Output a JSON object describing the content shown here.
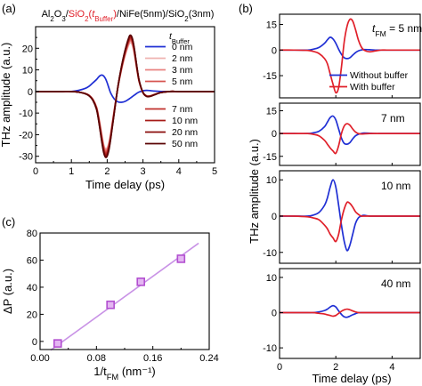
{
  "chart_data": [
    {
      "panel": "(a)",
      "type": "line",
      "title": {
        "segments": [
          {
            "text": "Al",
            "sub": false,
            "color": "#000000"
          },
          {
            "text": "2",
            "sub": true,
            "color": "#000000"
          },
          {
            "text": "O",
            "sub": false,
            "color": "#000000"
          },
          {
            "text": "3",
            "sub": true,
            "color": "#000000"
          },
          {
            "text": "/",
            "sub": false,
            "color": "#000000"
          },
          {
            "text": "SiO",
            "sub": false,
            "color": "#e0202a"
          },
          {
            "text": "2",
            "sub": true,
            "color": "#e0202a"
          },
          {
            "text": "(",
            "sub": false,
            "color": "#e0202a"
          },
          {
            "text": "t",
            "sub": false,
            "italic": true,
            "color": "#e0202a"
          },
          {
            "text": "Buffer",
            "sub": true,
            "color": "#e0202a"
          },
          {
            "text": ")",
            "sub": false,
            "color": "#e0202a"
          },
          {
            "text": "/NiFe(5nm)/SiO",
            "sub": false,
            "color": "#000000"
          },
          {
            "text": "2",
            "sub": true,
            "color": "#000000"
          },
          {
            "text": "(3nm)",
            "sub": false,
            "color": "#000000"
          }
        ]
      },
      "xlabel": "Time delay (ps)",
      "ylabel": "THz amplitude (a.u.)",
      "xlim": [
        0,
        5
      ],
      "ylim": [
        -33,
        30
      ],
      "xticks": [
        "0",
        "1",
        "2",
        "3",
        "4",
        "5"
      ],
      "yticks": [
        "-30",
        "-20",
        "-10",
        "0",
        "10",
        "20"
      ],
      "legend_title": {
        "base": "t",
        "sub": "Buffer"
      },
      "x": [
        0,
        0.25,
        0.5,
        0.75,
        1.0,
        1.2,
        1.4,
        1.5,
        1.6,
        1.7,
        1.75,
        1.8,
        1.85,
        1.9,
        1.95,
        2.0,
        2.05,
        2.1,
        2.2,
        2.3,
        2.4,
        2.5,
        2.6,
        2.65,
        2.7,
        2.75,
        2.8,
        2.85,
        2.9,
        3.0,
        3.1,
        3.2,
        3.3,
        3.5,
        3.75,
        4.0,
        4.5,
        5.0
      ],
      "series": [
        {
          "name": "0 nm",
          "color": "#1f2fd4",
          "values": [
            0,
            0,
            0,
            0,
            0,
            0.5,
            1.5,
            2.5,
            4.0,
            5.5,
            6.5,
            7.3,
            7.6,
            7.2,
            6.0,
            4.0,
            1.5,
            -0.8,
            -3.5,
            -4.8,
            -5.0,
            -4.6,
            -3.6,
            -3.0,
            -2.4,
            -1.8,
            -1.2,
            -0.6,
            -0.2,
            0.3,
            0.5,
            0.4,
            0.2,
            0,
            0,
            0,
            0,
            0
          ]
        },
        {
          "name": "2 nm",
          "color": "#efb3b0",
          "values": [
            0,
            0,
            0,
            0,
            0,
            -0.3,
            -1.0,
            -1.8,
            -3.5,
            -7.0,
            -10.5,
            -15.0,
            -20.0,
            -24.5,
            -26.5,
            -26.0,
            -23.5,
            -19.0,
            -8.0,
            2.0,
            10.0,
            16.5,
            21.5,
            22.6,
            21.5,
            18.0,
            13.0,
            8.0,
            4.0,
            -0.5,
            -2.0,
            -2.0,
            -1.5,
            -0.5,
            0,
            0,
            0,
            0
          ]
        },
        {
          "name": "3 nm",
          "color": "#e98380",
          "values": [
            0,
            0,
            0,
            0,
            0,
            -0.3,
            -1.0,
            -1.8,
            -3.6,
            -7.2,
            -10.8,
            -15.5,
            -20.5,
            -25.0,
            -27.0,
            -26.6,
            -24.0,
            -19.5,
            -8.5,
            2.0,
            10.3,
            17.0,
            22.2,
            23.4,
            22.2,
            18.6,
            13.4,
            8.2,
            4.1,
            -0.5,
            -2.0,
            -2.0,
            -1.5,
            -0.5,
            0,
            0,
            0,
            0
          ]
        },
        {
          "name": "5 nm",
          "color": "#d65550",
          "values": [
            0,
            0,
            0,
            0,
            0,
            -0.3,
            -1.0,
            -1.9,
            -3.7,
            -7.4,
            -11.2,
            -16.0,
            -21.2,
            -25.7,
            -27.8,
            -27.3,
            -24.6,
            -20.0,
            -8.8,
            2.1,
            10.6,
            17.5,
            22.8,
            24.0,
            22.8,
            19.1,
            13.8,
            8.5,
            4.2,
            -0.5,
            -2.1,
            -2.1,
            -1.5,
            -0.5,
            0,
            0,
            0,
            0
          ]
        },
        {
          "name": "7 nm",
          "color": "#c0302c",
          "values": [
            0,
            0,
            0,
            0,
            0,
            -0.3,
            -1.0,
            -1.9,
            -3.8,
            -7.6,
            -11.5,
            -16.5,
            -21.8,
            -26.4,
            -28.5,
            -28.0,
            -25.2,
            -20.5,
            -9.0,
            2.1,
            10.9,
            18.0,
            23.4,
            24.6,
            23.4,
            19.6,
            14.1,
            8.7,
            4.3,
            -0.5,
            -2.1,
            -2.1,
            -1.6,
            -0.5,
            0,
            0,
            0,
            0
          ]
        },
        {
          "name": "10 nm",
          "color": "#a61b18",
          "values": [
            0,
            0,
            0,
            0,
            0,
            -0.3,
            -1.1,
            -2.0,
            -3.9,
            -7.8,
            -11.8,
            -17.0,
            -22.4,
            -27.0,
            -29.2,
            -28.7,
            -25.8,
            -21.0,
            -9.2,
            2.2,
            11.2,
            18.4,
            23.9,
            25.2,
            23.9,
            20.0,
            14.5,
            8.9,
            4.4,
            -0.5,
            -2.2,
            -2.2,
            -1.6,
            -0.5,
            0,
            0,
            0,
            0
          ]
        },
        {
          "name": "20 nm",
          "color": "#8a0d0b",
          "values": [
            0,
            0,
            0,
            0,
            0,
            -0.3,
            -1.1,
            -2.0,
            -4.0,
            -8.0,
            -12.1,
            -17.4,
            -22.9,
            -27.6,
            -29.8,
            -29.3,
            -26.3,
            -21.4,
            -9.4,
            2.2,
            11.4,
            18.8,
            24.4,
            25.7,
            24.4,
            20.4,
            14.8,
            9.1,
            4.5,
            -0.5,
            -2.2,
            -2.2,
            -1.6,
            -0.5,
            0,
            0,
            0,
            0
          ]
        },
        {
          "name": "50 nm",
          "color": "#5a0303",
          "values": [
            0,
            0,
            0,
            0,
            0,
            -0.3,
            -1.1,
            -2.1,
            -4.1,
            -8.2,
            -12.4,
            -17.8,
            -23.4,
            -28.2,
            -30.4,
            -29.9,
            -26.9,
            -21.8,
            -9.6,
            2.3,
            11.6,
            19.1,
            24.8,
            26.1,
            24.8,
            20.8,
            15.0,
            9.2,
            4.6,
            -0.5,
            -2.3,
            -2.3,
            -1.7,
            -0.5,
            0,
            0,
            0,
            0
          ]
        }
      ]
    },
    {
      "panel": "(b)",
      "type": "line",
      "xlabel": "Time delay (ps)",
      "ylabel": "THz amplitude (a.u.)",
      "xlim": [
        0,
        5
      ],
      "xticks": [
        "0",
        "2",
        "4"
      ],
      "legend": [
        {
          "name": "Without buffer",
          "color": "#1f2fd4"
        },
        {
          "name": "With buffer",
          "color": "#e0202a"
        }
      ],
      "x": [
        0,
        0.5,
        1.0,
        1.2,
        1.4,
        1.6,
        1.7,
        1.8,
        1.9,
        2.0,
        2.1,
        2.2,
        2.3,
        2.4,
        2.5,
        2.6,
        2.7,
        2.8,
        2.9,
        3.0,
        3.2,
        3.4,
        3.6,
        3.8,
        4.0,
        4.5,
        5.0
      ],
      "subplots": [
        {
          "label": {
            "base": "t",
            "sub": "FM",
            "rest": " = 5 nm"
          },
          "ylim": [
            -28,
            21
          ],
          "yticks": [
            "15",
            "0",
            "-15"
          ],
          "yticks_values": [
            15,
            0,
            -15
          ],
          "series": [
            {
              "name": "Without buffer",
              "color": "#1f2fd4",
              "values": [
                0,
                0,
                0,
                0.5,
                1.5,
                4.0,
                6.0,
                7.5,
                6.5,
                4.0,
                0.5,
                -2.5,
                -4.5,
                -5.0,
                -4.5,
                -3.0,
                -1.5,
                -0.5,
                0,
                0.3,
                0.2,
                0,
                0,
                0,
                0,
                0,
                0
              ]
            },
            {
              "name": "With buffer",
              "color": "#e0202a",
              "values": [
                0,
                0,
                -0.2,
                -0.8,
                -2.0,
                -5.0,
                -8.0,
                -14.0,
                -20.0,
                -25.0,
                -22.0,
                -10.0,
                5.0,
                14.0,
                18.0,
                17.0,
                12.0,
                6.0,
                2.0,
                0,
                -1.0,
                -0.5,
                0,
                0,
                0,
                0,
                0
              ]
            }
          ]
        },
        {
          "label": {
            "base": "",
            "sub": "",
            "rest": "7 nm"
          },
          "ylim": [
            -21,
            20
          ],
          "yticks": [
            "15",
            "0",
            "-15"
          ],
          "yticks_values": [
            15,
            0,
            -15
          ],
          "series": [
            {
              "name": "Without buffer",
              "color": "#1f2fd4",
              "values": [
                0,
                0,
                0,
                0.5,
                1.5,
                4.5,
                7.5,
                10.5,
                11.5,
                9.0,
                3.0,
                -3.0,
                -6.5,
                -7.0,
                -6.0,
                -3.5,
                -1.5,
                -0.5,
                0,
                0.3,
                0.2,
                0,
                0,
                0,
                0,
                0,
                0
              ]
            },
            {
              "name": "With buffer",
              "color": "#e0202a",
              "values": [
                0,
                0,
                0,
                -0.5,
                -1.5,
                -4.5,
                -7.0,
                -9.5,
                -11.5,
                -13.0,
                -8.0,
                0,
                5.0,
                6.5,
                5.5,
                3.0,
                1.0,
                0,
                -0.3,
                -0.2,
                0,
                0,
                0,
                0,
                0,
                0,
                0
              ]
            }
          ]
        },
        {
          "label": {
            "base": "",
            "sub": "",
            "rest": "10 nm"
          },
          "ylim": [
            -13,
            12.5
          ],
          "yticks": [
            "10",
            "0",
            "-10"
          ],
          "yticks_values": [
            10,
            0,
            -10
          ],
          "series": [
            {
              "name": "Without buffer",
              "color": "#1f2fd4",
              "values": [
                0,
                0,
                0,
                0.3,
                1.0,
                3.0,
                5.0,
                8.0,
                10.0,
                8.0,
                3.0,
                -2.5,
                -7.0,
                -9.5,
                -8.0,
                -5.0,
                -2.0,
                -0.5,
                0,
                0.2,
                0,
                0,
                0,
                0,
                0,
                0,
                0
              ]
            },
            {
              "name": "With buffer",
              "color": "#e0202a",
              "values": [
                0,
                0,
                -0.2,
                -0.5,
                -1.0,
                -2.5,
                -3.5,
                -5.0,
                -6.0,
                -7.0,
                -5.0,
                -1.0,
                2.0,
                3.8,
                3.5,
                2.5,
                1.2,
                0.5,
                0,
                0,
                0,
                0,
                0,
                0,
                0,
                0,
                0
              ]
            }
          ]
        },
        {
          "label": {
            "base": "",
            "sub": "",
            "rest": "40 nm"
          },
          "ylim": [
            -13,
            12.5
          ],
          "yticks": [
            "10",
            "0",
            "-10"
          ],
          "yticks_values": [
            10,
            0,
            -10
          ],
          "series": [
            {
              "name": "Without buffer",
              "color": "#1f2fd4",
              "values": [
                0,
                0,
                0,
                0,
                0.2,
                0.6,
                1.0,
                1.6,
                2.0,
                1.6,
                0.5,
                -0.5,
                -1.2,
                -1.3,
                -1.0,
                -0.6,
                -0.3,
                0,
                0,
                0,
                0,
                0,
                0,
                0,
                0,
                0,
                0
              ]
            },
            {
              "name": "With buffer",
              "color": "#e0202a",
              "values": [
                0,
                0,
                0,
                0,
                -0.2,
                -0.4,
                -0.6,
                -0.8,
                -1.0,
                -0.8,
                -0.2,
                0.4,
                0.8,
                1.0,
                0.8,
                0.5,
                0.2,
                0,
                0,
                0,
                0,
                0,
                0,
                0,
                0,
                0,
                0
              ]
            }
          ]
        }
      ]
    },
    {
      "panel": "(c)",
      "type": "scatter",
      "xlabel": {
        "base": "1/t",
        "sub": "FM",
        "rest": " (nm⁻¹)"
      },
      "ylabel": "ΔP (a.u.)",
      "xlim": [
        0,
        0.24
      ],
      "ylim": [
        -6,
        80
      ],
      "xticks": [
        "0.00",
        "0.08",
        "0.16",
        "0.24"
      ],
      "xticks_values": [
        0,
        0.08,
        0.16,
        0.24
      ],
      "yticks": [
        "0",
        "20",
        "40",
        "60",
        "80"
      ],
      "yticks_values": [
        0,
        20,
        40,
        60,
        80
      ],
      "points": {
        "x": [
          0.025,
          0.1,
          0.143,
          0.2
        ],
        "y": [
          -1.5,
          27,
          44,
          61
        ]
      },
      "fit_line": {
        "x": [
          0.015,
          0.225
        ],
        "y": [
          -6.5,
          72.5
        ]
      },
      "marker_color": "#b24fd0",
      "marker_fill": "#e4b6f2",
      "line_color": "#c993e6"
    }
  ]
}
